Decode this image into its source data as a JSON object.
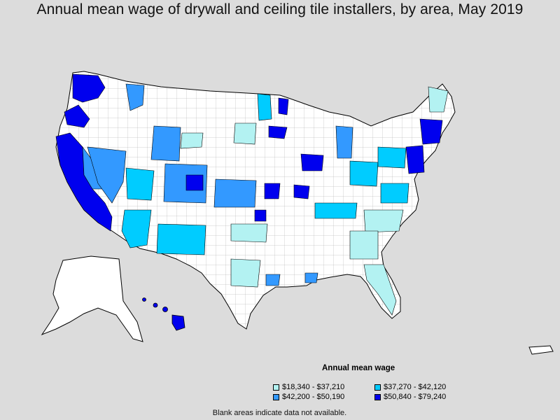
{
  "title": "Annual mean wage of drywall and ceiling tile installers, by area, May 2019",
  "legend": {
    "title": "Annual mean wage",
    "items": [
      {
        "label": "$18,340 - $37,210",
        "color": "#b3f2f2"
      },
      {
        "label": "$37,270 - $42,120",
        "color": "#00ccff"
      },
      {
        "label": "$42,200 - $50,190",
        "color": "#3399ff"
      },
      {
        "label": "$50,840 - $79,240",
        "color": "#0000ee"
      }
    ]
  },
  "footnote": "Blank areas indicate data not available.",
  "colors": {
    "background": "#dcdcdc",
    "blank": "#ffffff",
    "border": "#000000"
  }
}
